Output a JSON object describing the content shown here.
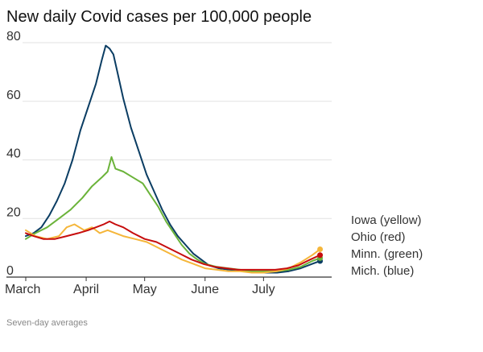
{
  "chart_data": {
    "type": "line",
    "title": "New daily Covid cases per 100,000 people",
    "note": "Seven-day averages",
    "ylim": [
      0,
      80
    ],
    "yticks": [
      0,
      20,
      40,
      60,
      80
    ],
    "xlim": [
      "2021-03-01",
      "2021-07-31"
    ],
    "xticks": [
      {
        "date": "2021-03-01",
        "label": "March"
      },
      {
        "date": "2021-04-01",
        "label": "April"
      },
      {
        "date": "2021-05-01",
        "label": "May"
      },
      {
        "date": "2021-06-01",
        "label": "June"
      },
      {
        "date": "2021-07-01",
        "label": "July"
      }
    ],
    "grid": true,
    "legend": "right",
    "series": [
      {
        "name": "Mich. (blue)",
        "color": "#0b3d63",
        "x": [
          "2021-03-01",
          "2021-03-05",
          "2021-03-09",
          "2021-03-13",
          "2021-03-17",
          "2021-03-21",
          "2021-03-25",
          "2021-03-29",
          "2021-04-02",
          "2021-04-06",
          "2021-04-09",
          "2021-04-11",
          "2021-04-13",
          "2021-04-15",
          "2021-04-17",
          "2021-04-20",
          "2021-04-24",
          "2021-04-28",
          "2021-05-02",
          "2021-05-06",
          "2021-05-10",
          "2021-05-14",
          "2021-05-18",
          "2021-05-22",
          "2021-05-26",
          "2021-05-30",
          "2021-06-03",
          "2021-06-08",
          "2021-06-14",
          "2021-06-20",
          "2021-06-26",
          "2021-07-02",
          "2021-07-08",
          "2021-07-14",
          "2021-07-20",
          "2021-07-26",
          "2021-07-30"
        ],
        "values": [
          14,
          15,
          17,
          21,
          26,
          32,
          40,
          50,
          58,
          66,
          74,
          79,
          78,
          76,
          70,
          61,
          51,
          43,
          35,
          29,
          23,
          18,
          14,
          11,
          8,
          6,
          4,
          3,
          2.5,
          2,
          2,
          1.5,
          1.5,
          2,
          3,
          4.5,
          5.5
        ]
      },
      {
        "name": "Minn. (green)",
        "color": "#6bb33a",
        "x": [
          "2021-03-01",
          "2021-03-06",
          "2021-03-12",
          "2021-03-18",
          "2021-03-24",
          "2021-03-30",
          "2021-04-04",
          "2021-04-09",
          "2021-04-12",
          "2021-04-14",
          "2021-04-16",
          "2021-04-20",
          "2021-04-25",
          "2021-04-30",
          "2021-05-04",
          "2021-05-08",
          "2021-05-12",
          "2021-05-16",
          "2021-05-20",
          "2021-05-24",
          "2021-05-28",
          "2021-06-01",
          "2021-06-07",
          "2021-06-13",
          "2021-06-19",
          "2021-06-25",
          "2021-07-01",
          "2021-07-08",
          "2021-07-14",
          "2021-07-20",
          "2021-07-26",
          "2021-07-30"
        ],
        "values": [
          13,
          15,
          17,
          20,
          23,
          27,
          31,
          34,
          36,
          41,
          37,
          36,
          34,
          32,
          28,
          24,
          19,
          15,
          11,
          8,
          6,
          4.5,
          3.5,
          3,
          2.5,
          2,
          2,
          2,
          2.5,
          3.5,
          5.5,
          6.5
        ]
      },
      {
        "name": "Ohio (red)",
        "color": "#c70d0d",
        "x": [
          "2021-03-01",
          "2021-03-05",
          "2021-03-10",
          "2021-03-16",
          "2021-03-22",
          "2021-03-28",
          "2021-04-02",
          "2021-04-06",
          "2021-04-10",
          "2021-04-13",
          "2021-04-16",
          "2021-04-20",
          "2021-04-25",
          "2021-05-01",
          "2021-05-07",
          "2021-05-13",
          "2021-05-19",
          "2021-05-25",
          "2021-05-31",
          "2021-06-06",
          "2021-06-12",
          "2021-06-18",
          "2021-06-24",
          "2021-07-01",
          "2021-07-07",
          "2021-07-13",
          "2021-07-19",
          "2021-07-25",
          "2021-07-30"
        ],
        "values": [
          15,
          14,
          13,
          13,
          14,
          15,
          16,
          17,
          18,
          19,
          18,
          17,
          15,
          13,
          12,
          10,
          8,
          6,
          4.5,
          3.5,
          3,
          2.5,
          2.5,
          2.5,
          2.5,
          3,
          4,
          6,
          7.5
        ]
      },
      {
        "name": "Iowa (yellow)",
        "color": "#f5b63a",
        "x": [
          "2021-03-01",
          "2021-03-06",
          "2021-03-12",
          "2021-03-18",
          "2021-03-22",
          "2021-03-26",
          "2021-03-31",
          "2021-04-04",
          "2021-04-08",
          "2021-04-12",
          "2021-04-16",
          "2021-04-20",
          "2021-04-26",
          "2021-05-02",
          "2021-05-08",
          "2021-05-14",
          "2021-05-20",
          "2021-05-26",
          "2021-06-01",
          "2021-06-07",
          "2021-06-13",
          "2021-06-19",
          "2021-06-25",
          "2021-07-01",
          "2021-07-08",
          "2021-07-14",
          "2021-07-20",
          "2021-07-26",
          "2021-07-30"
        ],
        "values": [
          16,
          14,
          13,
          14,
          17,
          18,
          16,
          17,
          15,
          16,
          15,
          14,
          13,
          12,
          10,
          8,
          6,
          4.5,
          3,
          2.5,
          2,
          2,
          1.5,
          1.5,
          2,
          3,
          5,
          7.5,
          9.5
        ]
      }
    ],
    "legend_order": [
      "Iowa (yellow)",
      "Ohio (red)",
      "Minn. (green)",
      "Mich. (blue)"
    ]
  }
}
